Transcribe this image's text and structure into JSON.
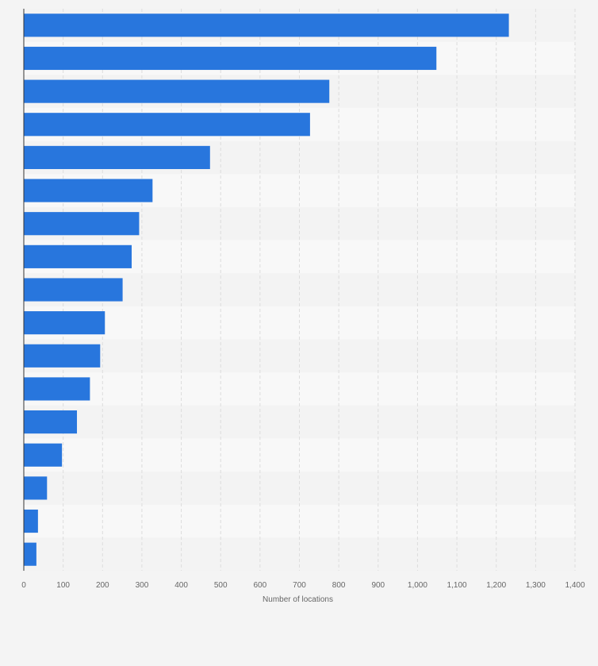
{
  "chart_data": {
    "type": "bar",
    "orientation": "horizontal",
    "title": "",
    "xlabel": "Number of locations",
    "ylabel": "",
    "categories": [
      "",
      "",
      "",
      "",
      "",
      "",
      "",
      "",
      "",
      "",
      "",
      "",
      "",
      "",
      "",
      "",
      ""
    ],
    "values": [
      1232,
      1048,
      776,
      727,
      473,
      327,
      293,
      274,
      251,
      206,
      194,
      168,
      135,
      97,
      59,
      36,
      32
    ],
    "xlim": [
      0,
      1400
    ],
    "x_ticks": [
      0,
      100,
      200,
      300,
      400,
      500,
      600,
      700,
      800,
      900,
      1000,
      1100,
      1200,
      1300,
      1400
    ],
    "x_tick_labels": [
      "0",
      "100",
      "200",
      "300",
      "400",
      "500",
      "600",
      "700",
      "800",
      "900",
      "1,000",
      "1,100",
      "1,200",
      "1,300",
      "1,400"
    ],
    "grid": true,
    "bar_color": "#2876dd",
    "band_colors": [
      "#f3f3f3",
      "#f8f8f8"
    ],
    "grid_color": "#dddddd",
    "axis_color": "#333333"
  }
}
